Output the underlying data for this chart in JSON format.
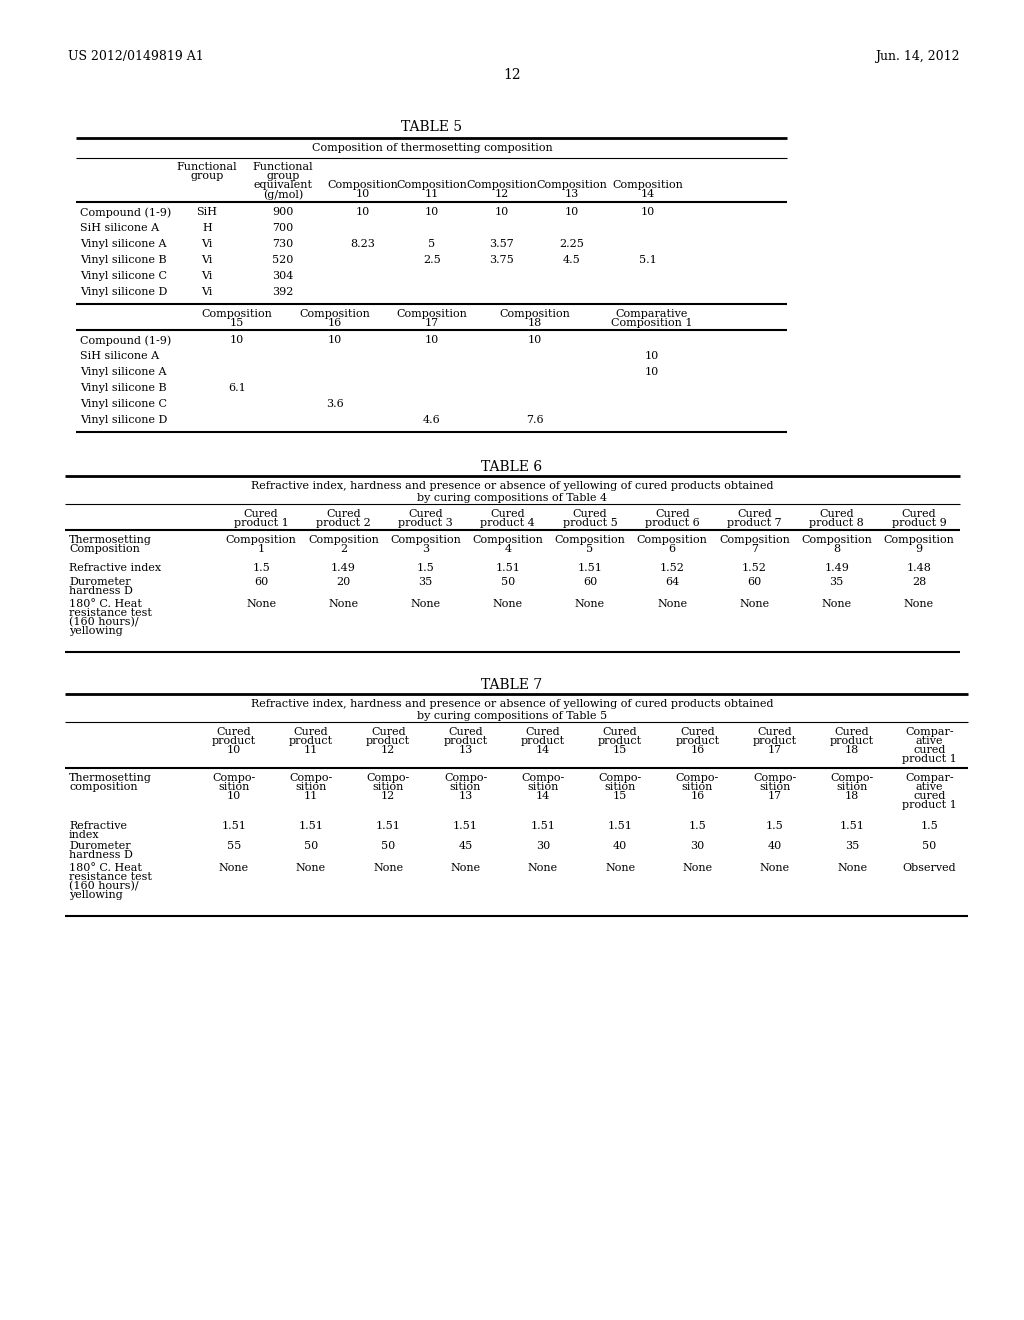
{
  "page_header_left": "US 2012/0149819 A1",
  "page_header_right": "Jun. 14, 2012",
  "page_number": "12",
  "background_color": "#ffffff",
  "text_color": "#000000"
}
